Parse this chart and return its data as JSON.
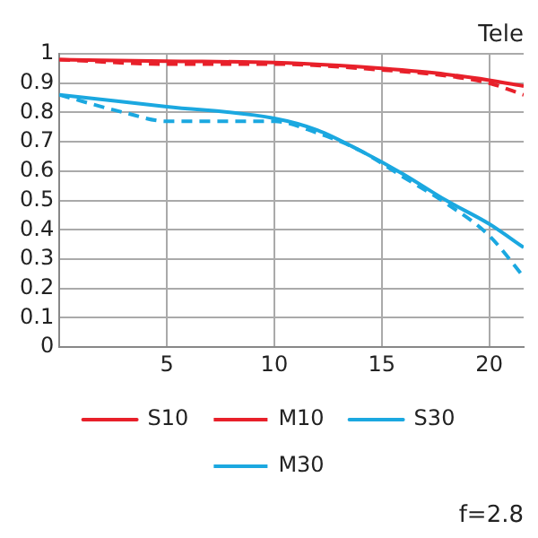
{
  "chart_data": {
    "type": "line",
    "annotations": [
      "Tele",
      "f=2.8"
    ],
    "xlim": [
      0,
      21.6
    ],
    "xticks": [
      5,
      10,
      15,
      20
    ],
    "ylim": [
      0,
      1
    ],
    "yticks": [
      0,
      0.1,
      0.2,
      0.3,
      0.4,
      0.5,
      0.6,
      0.7,
      0.8,
      0.9,
      1
    ],
    "grid": true,
    "legend": "bottom",
    "marker": "none",
    "series": [
      {
        "name": "S10",
        "color": "#e8202a",
        "line_style": "solid",
        "x": [
          0,
          5,
          10,
          13,
          15,
          18,
          20,
          21.6
        ],
        "values": [
          0.98,
          0.975,
          0.97,
          0.96,
          0.95,
          0.93,
          0.91,
          0.89
        ]
      },
      {
        "name": "M10",
        "color": "#e8202a",
        "line_style": "dashed",
        "x": [
          0,
          5,
          10,
          15,
          18,
          20,
          21.6
        ],
        "values": [
          0.98,
          0.965,
          0.965,
          0.945,
          0.925,
          0.9,
          0.86
        ]
      },
      {
        "name": "S30",
        "color": "#1ba8e0",
        "line_style": "solid",
        "x": [
          0,
          5,
          10,
          12,
          14,
          16,
          18,
          20,
          21.6
        ],
        "values": [
          0.86,
          0.82,
          0.78,
          0.74,
          0.67,
          0.59,
          0.5,
          0.42,
          0.34
        ]
      },
      {
        "name": "M30",
        "color": "#1ba8e0",
        "line_style": "dashed",
        "x": [
          0,
          3,
          5,
          8,
          10,
          12,
          14,
          16,
          18,
          20,
          21.6
        ],
        "values": [
          0.86,
          0.8,
          0.77,
          0.77,
          0.77,
          0.73,
          0.67,
          0.58,
          0.49,
          0.38,
          0.24
        ]
      }
    ]
  }
}
